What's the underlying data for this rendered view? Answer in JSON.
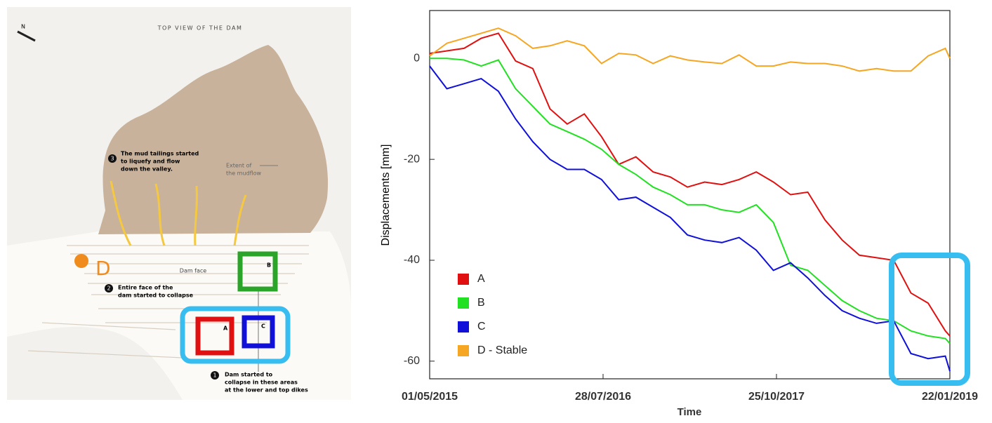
{
  "map": {
    "title": "TOP VIEW OF THE DAM",
    "north": "N",
    "step3": {
      "number": "3",
      "lines": [
        "The mud tailings started",
        "to liquefy and flow",
        "down the valley."
      ]
    },
    "extent": [
      "Extent of",
      "the mudflow"
    ],
    "dam_face": "Dam face",
    "step2": {
      "number": "2",
      "lines": [
        "Entire face of the",
        "dam started to collapse"
      ]
    },
    "step1": {
      "number": "1",
      "lines": [
        "Dam started to",
        "collapse in these areas",
        "at the lower and top dikes"
      ]
    },
    "markers": {
      "A": "A",
      "B": "B",
      "C": "C",
      "D": "D"
    }
  },
  "chart_data": {
    "type": "line",
    "x_label": "Time",
    "y_label": "Displacements [mm]",
    "x": [
      "01/05/2015",
      "15/06/2015",
      "30/07/2015",
      "13/09/2015",
      "28/10/2015",
      "12/12/2015",
      "26/01/2016",
      "11/03/2016",
      "25/04/2016",
      "09/06/2016",
      "24/07/2016",
      "07/09/2016",
      "22/10/2016",
      "06/12/2016",
      "20/01/2017",
      "06/03/2017",
      "20/04/2017",
      "04/06/2017",
      "19/07/2017",
      "02/09/2017",
      "17/10/2017",
      "01/12/2017",
      "15/01/2018",
      "01/03/2018",
      "15/04/2018",
      "30/05/2018",
      "14/07/2018",
      "28/08/2018",
      "12/10/2018",
      "26/11/2018",
      "10/01/2019",
      "22/01/2019"
    ],
    "xlim": [
      "01/05/2015",
      "22/01/2019"
    ],
    "xticks": [
      "01/05/2015",
      "28/07/2016",
      "25/10/2017",
      "22/01/2019"
    ],
    "ylim": [
      -63.5,
      9.5
    ],
    "yticks": [
      0,
      -20,
      -40,
      -60
    ],
    "legend": "lower left",
    "series": [
      {
        "name": "A",
        "color": "#e01010",
        "values": [
          1,
          1.5,
          2,
          4,
          5,
          -0.5,
          -2,
          -10,
          -13,
          -11,
          -15.5,
          -21,
          -19.5,
          -22.5,
          -23.5,
          -25.5,
          -24.5,
          -25,
          -24,
          -22.5,
          -24.5,
          -27,
          -26.5,
          -32,
          -36,
          -39,
          -39.5,
          -40,
          -46.5,
          -48.5,
          -54,
          -55
        ]
      },
      {
        "name": "B",
        "color": "#22e022",
        "values": [
          0,
          0,
          -0.3,
          -1.5,
          -0.3,
          -6,
          -9.5,
          -13,
          -14.5,
          -16,
          -18,
          -21,
          -23,
          -25.5,
          -27,
          -29,
          -29,
          -30,
          -30.5,
          -29,
          -32.5,
          -41,
          -42,
          -45,
          -48,
          -50,
          -51.5,
          -52,
          -54,
          -55,
          -55.5,
          -56.5
        ]
      },
      {
        "name": "C",
        "color": "#1010d8",
        "values": [
          -1.5,
          -6,
          -5,
          -4,
          -6.5,
          -12,
          -16.5,
          -20,
          -22,
          -22,
          -24,
          -28,
          -27.5,
          -29.5,
          -31.5,
          -35,
          -36,
          -36.5,
          -35.5,
          -38,
          -42,
          -40.5,
          -43.5,
          -47,
          -50,
          -51.5,
          -52.5,
          -52,
          -58.5,
          -59.5,
          -59,
          -62
        ]
      },
      {
        "name": "D - Stable",
        "color": "#f5a623",
        "values": [
          0.5,
          3,
          4,
          5,
          6,
          4.5,
          2,
          2.5,
          3.5,
          2.5,
          -1,
          1,
          0.7,
          -1,
          0.5,
          -0.3,
          -0.7,
          -1,
          0.7,
          -1.5,
          -1.5,
          -0.7,
          -1,
          -1,
          -1.5,
          -2.5,
          -2,
          -2.5,
          -2.5,
          0.5,
          2,
          0
        ]
      }
    ]
  }
}
